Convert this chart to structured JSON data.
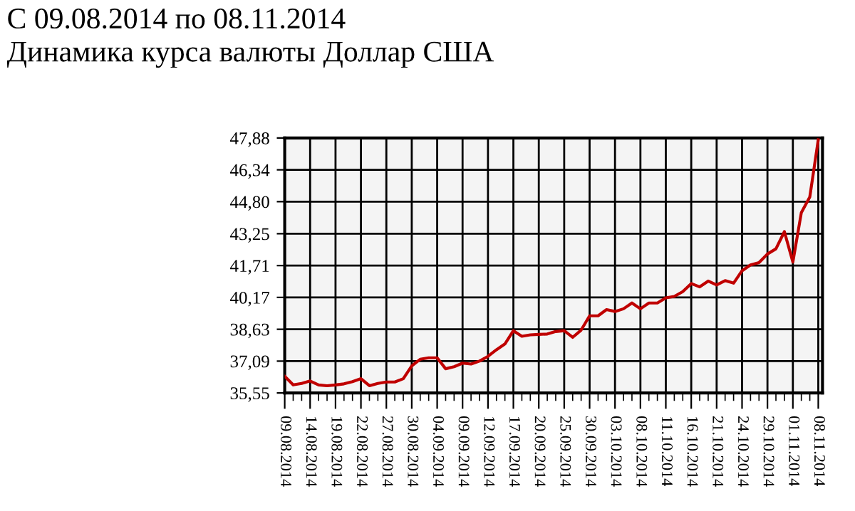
{
  "chart_data": {
    "type": "line",
    "title": "С 09.08.2014 по 08.11.2014",
    "subtitle": "Динамика курса валюты Доллар США",
    "categories": [
      "09.08.2014",
      null,
      null,
      "14.08.2014",
      null,
      null,
      "19.08.2014",
      null,
      null,
      "22.08.2014",
      null,
      null,
      "27.08.2014",
      null,
      null,
      "30.08.2014",
      null,
      null,
      "04.09.2014",
      null,
      null,
      "09.09.2014",
      null,
      null,
      "12.09.2014",
      null,
      null,
      "17.09.2014",
      null,
      null,
      "20.09.2014",
      null,
      null,
      "25.09.2014",
      null,
      null,
      "30.09.2014",
      null,
      null,
      "03.10.2014",
      null,
      null,
      "08.10.2014",
      null,
      null,
      "11.10.2014",
      null,
      null,
      "16.10.2014",
      null,
      null,
      "21.10.2014",
      null,
      null,
      "24.10.2014",
      null,
      null,
      "29.10.2014",
      null,
      null,
      "01.11.2014",
      null,
      null,
      "08.11.2014"
    ],
    "series": [
      {
        "color": "#c00000",
        "values": [
          36.36,
          35.94,
          36.01,
          36.13,
          35.94,
          35.9,
          35.94,
          35.99,
          36.1,
          36.24,
          35.9,
          36.01,
          36.08,
          36.08,
          36.24,
          36.86,
          37.18,
          37.25,
          37.25,
          36.72,
          36.82,
          36.99,
          36.95,
          37.09,
          37.32,
          37.64,
          37.92,
          38.56,
          38.29,
          38.36,
          38.38,
          38.4,
          38.52,
          38.56,
          38.24,
          38.59,
          39.28,
          39.28,
          39.58,
          39.49,
          39.62,
          39.9,
          39.62,
          39.9,
          39.9,
          40.15,
          40.22,
          40.45,
          40.84,
          40.68,
          40.96,
          40.77,
          40.98,
          40.86,
          41.46,
          41.74,
          41.85,
          42.27,
          42.52,
          43.35,
          41.88,
          44.27,
          45.03,
          47.79
        ]
      }
    ],
    "ylim": [
      35.55,
      47.88
    ],
    "yticks": [
      {
        "value": 35.55,
        "label": "35,55"
      },
      {
        "value": 37.09,
        "label": "37,09"
      },
      {
        "value": 38.63,
        "label": "38,63"
      },
      {
        "value": 40.17,
        "label": "40,17"
      },
      {
        "value": 41.71,
        "label": "41,71"
      },
      {
        "value": 43.25,
        "label": "43,25"
      },
      {
        "value": 44.8,
        "label": "44,80"
      },
      {
        "value": 46.34,
        "label": "46,34"
      },
      {
        "value": 47.88,
        "label": "47,88"
      }
    ],
    "grid": true,
    "marker": "none",
    "line_style": "solid"
  }
}
